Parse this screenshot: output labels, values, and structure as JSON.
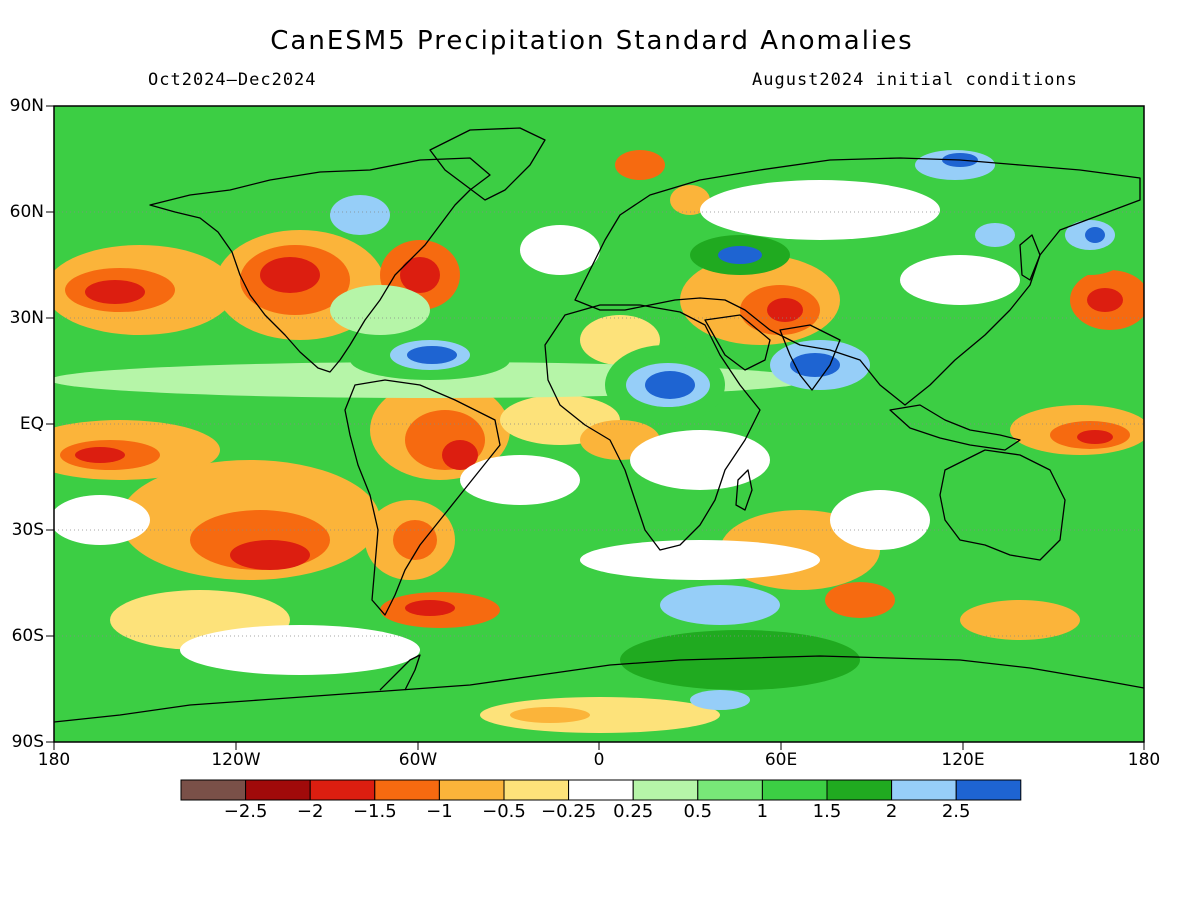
{
  "title": "CanESM5 Precipitation Standard Anomalies",
  "subtitle_left": "Oct2024–Dec2024",
  "subtitle_right": "August2024 initial conditions",
  "lat_labels": [
    "90N",
    "60N",
    "30N",
    "EQ",
    "30S",
    "60S",
    "90S"
  ],
  "lon_labels": [
    "180",
    "120W",
    "60W",
    "0",
    "60E",
    "120E",
    "180"
  ],
  "colorbar": {
    "colors": [
      "#7a5048",
      "#a00a0a",
      "#dc1e10",
      "#f66a10",
      "#fbb43a",
      "#fde27a",
      "#ffffff",
      "#b6f5a8",
      "#78e878",
      "#3cce44",
      "#20aa20",
      "#96cef8",
      "#1e64d2"
    ],
    "labels": [
      "−2.5",
      "−2",
      "−1.5",
      "−1",
      "−0.5",
      "−0.25",
      "0.25",
      "0.5",
      "1",
      "1.5",
      "2",
      "2.5"
    ]
  }
}
